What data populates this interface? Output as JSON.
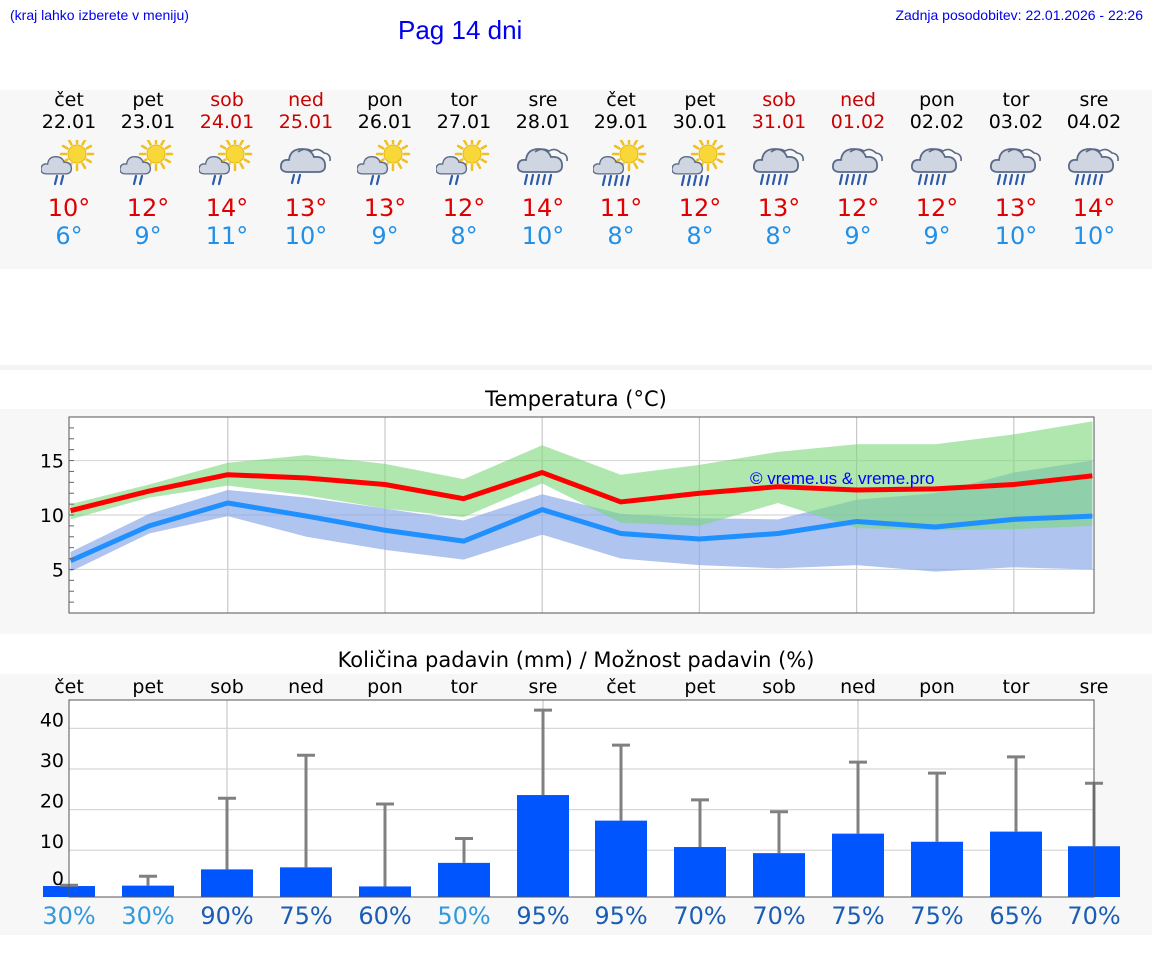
{
  "header": {
    "hint": "(kraj lahko izberete v meniju)",
    "title": "Pag 14 dni",
    "updated": "Zadnja posodobitev: 22.01.2026 - 22:26"
  },
  "colors": {
    "max": "#ff0000",
    "min": "#2090ff",
    "band_max": "#a8e6a8",
    "band_min": "#adc3f2",
    "overlap": "#7fbfa0",
    "bar": "#0055ff",
    "whisker": "#808080"
  },
  "days": [
    {
      "dow": "čet",
      "date": "22.01",
      "weekend": false,
      "icon": "sun-cloud-rain-icon",
      "max": "10°",
      "min": "6°"
    },
    {
      "dow": "pet",
      "date": "23.01",
      "weekend": false,
      "icon": "sun-cloud-rain-icon",
      "max": "12°",
      "min": "9°"
    },
    {
      "dow": "sob",
      "date": "24.01",
      "weekend": true,
      "icon": "sun-cloud-rain-icon",
      "max": "14°",
      "min": "11°"
    },
    {
      "dow": "ned",
      "date": "25.01",
      "weekend": true,
      "icon": "cloud-rain-icon",
      "max": "13°",
      "min": "10°"
    },
    {
      "dow": "pon",
      "date": "26.01",
      "weekend": false,
      "icon": "sun-cloud-rain-icon",
      "max": "13°",
      "min": "9°"
    },
    {
      "dow": "tor",
      "date": "27.01",
      "weekend": false,
      "icon": "sun-cloud-rain-icon",
      "max": "12°",
      "min": "8°"
    },
    {
      "dow": "sre",
      "date": "28.01",
      "weekend": false,
      "icon": "cloud-heavy-rain-icon",
      "max": "14°",
      "min": "10°"
    },
    {
      "dow": "čet",
      "date": "29.01",
      "weekend": false,
      "icon": "sun-cloud-heavy-rain-icon",
      "max": "11°",
      "min": "8°"
    },
    {
      "dow": "pet",
      "date": "30.01",
      "weekend": false,
      "icon": "sun-cloud-heavy-rain-icon",
      "max": "12°",
      "min": "8°"
    },
    {
      "dow": "sob",
      "date": "31.01",
      "weekend": true,
      "icon": "cloud-heavy-rain-icon",
      "max": "13°",
      "min": "8°"
    },
    {
      "dow": "ned",
      "date": "01.02",
      "weekend": true,
      "icon": "cloud-heavy-rain-icon",
      "max": "12°",
      "min": "9°"
    },
    {
      "dow": "pon",
      "date": "02.02",
      "weekend": false,
      "icon": "cloud-heavy-rain-icon",
      "max": "12°",
      "min": "9°"
    },
    {
      "dow": "tor",
      "date": "03.02",
      "weekend": false,
      "icon": "cloud-heavy-rain-icon",
      "max": "13°",
      "min": "10°"
    },
    {
      "dow": "sre",
      "date": "04.02",
      "weekend": false,
      "icon": "cloud-heavy-rain-icon",
      "max": "14°",
      "min": "10°"
    }
  ],
  "chart_data": [
    {
      "type": "line",
      "title": "Temperatura (°C)",
      "watermark": "© vreme.us & vreme.pro",
      "yticks": [
        "5",
        "10",
        "15"
      ],
      "ylim": [
        1,
        19
      ],
      "x": [
        0,
        1,
        2,
        3,
        4,
        5,
        6,
        7,
        8,
        9,
        10,
        11,
        12,
        13
      ],
      "xlim": [
        -0.02,
        13.02
      ],
      "series": [
        {
          "name": "max",
          "values": [
            10.4,
            12.2,
            13.7,
            13.4,
            12.8,
            11.5,
            13.9,
            11.2,
            12.0,
            12.6,
            12.3,
            12.4,
            12.8,
            13.6
          ]
        },
        {
          "name": "min",
          "values": [
            5.8,
            9.0,
            11.1,
            9.9,
            8.6,
            7.6,
            10.5,
            8.3,
            7.8,
            8.3,
            9.4,
            8.9,
            9.6,
            9.9
          ]
        },
        {
          "name": "max_range_high",
          "values": [
            11.0,
            12.8,
            14.8,
            15.5,
            14.7,
            13.3,
            16.4,
            13.7,
            14.6,
            15.8,
            16.5,
            16.5,
            17.4,
            18.6
          ]
        },
        {
          "name": "max_range_low",
          "values": [
            9.6,
            11.6,
            12.7,
            11.8,
            10.6,
            9.8,
            12.9,
            9.3,
            9.0,
            11.1,
            8.8,
            8.6,
            8.7,
            9.0
          ]
        },
        {
          "name": "min_range_high",
          "values": [
            6.6,
            10.1,
            12.3,
            11.6,
            10.6,
            9.5,
            11.9,
            10.1,
            9.7,
            9.6,
            11.4,
            12.0,
            13.9,
            15.0
          ]
        },
        {
          "name": "min_range_low",
          "values": [
            4.8,
            8.3,
            9.9,
            8.0,
            6.8,
            5.9,
            8.2,
            6.0,
            5.4,
            5.1,
            5.4,
            4.8,
            5.2,
            5.0
          ]
        }
      ]
    },
    {
      "type": "bar",
      "title": "Količina padavin (mm) / Možnost padavin (%)",
      "categories": [
        "čet",
        "pet",
        "sob",
        "ned",
        "pon",
        "tor",
        "sre",
        "čet",
        "pet",
        "sob",
        "ned",
        "pon",
        "tor",
        "sre"
      ],
      "yticks": [
        "0",
        "10",
        "20",
        "30",
        "40"
      ],
      "ylim": [
        -2.5,
        46
      ],
      "values": [
        0.2,
        0.3,
        4.3,
        4.8,
        0.1,
        5.9,
        22.6,
        16.3,
        9.8,
        8.3,
        13.1,
        11.1,
        13.6,
        10.0
      ],
      "whisker_high": [
        0.4,
        2.6,
        21.8,
        32.4,
        20.4,
        11.9,
        43.5,
        34.9,
        21.4,
        18.5,
        30.7,
        28.0,
        32.0,
        25.5
      ],
      "probability": [
        "30%",
        "30%",
        "90%",
        "75%",
        "60%",
        "50%",
        "95%",
        "95%",
        "70%",
        "70%",
        "75%",
        "75%",
        "65%",
        "70%"
      ],
      "probability_colors": [
        "#3399dd",
        "#3399dd",
        "#1a5db5",
        "#1a5db5",
        "#1a5db5",
        "#3399dd",
        "#1a5db5",
        "#1a5db5",
        "#1a5db5",
        "#1a5db5",
        "#1a5db5",
        "#1a5db5",
        "#1a5db5",
        "#1a5db5"
      ]
    }
  ]
}
